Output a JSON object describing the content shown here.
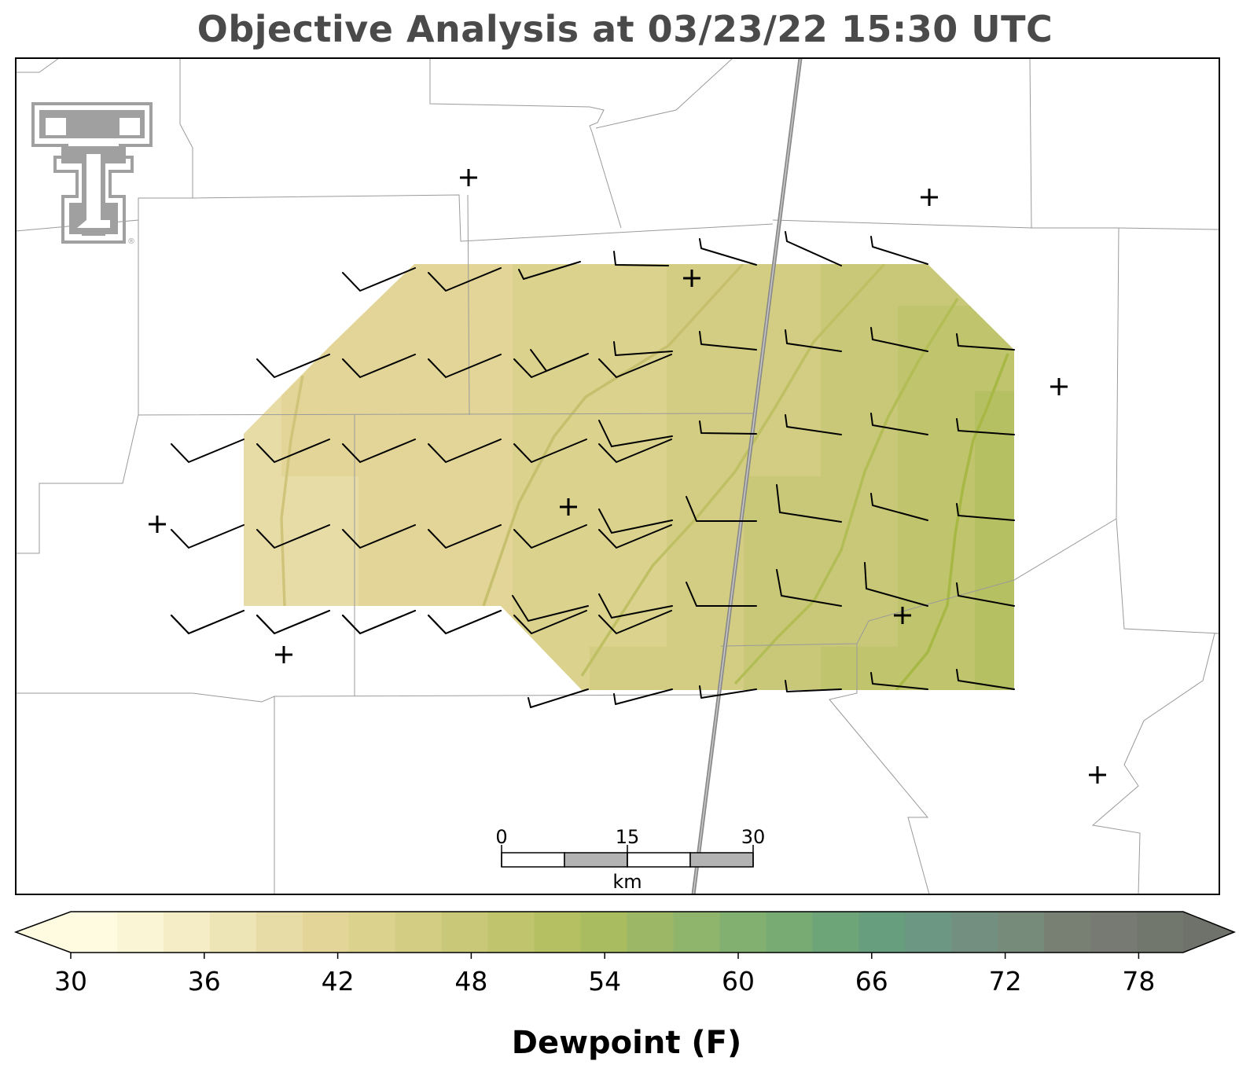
{
  "title": "Objective Analysis at 03/23/22 15:30 UTC",
  "logo": {
    "name": "texas-tech-double-t-logo",
    "color": "#a0a0a0",
    "mark": "®"
  },
  "map": {
    "field": "Dewpoint (F)",
    "grid": {
      "cols": 11,
      "rows": 6,
      "dewpoint": [
        [
          39.5,
          40.0,
          40.5,
          41.5,
          42.5,
          43.5,
          44.5,
          45.5,
          46.5,
          47.5,
          49.0
        ],
        [
          39.5,
          40.0,
          40.5,
          41.5,
          42.5,
          43.5,
          44.5,
          45.5,
          46.5,
          48.0,
          49.5
        ],
        [
          39.5,
          40.0,
          40.5,
          41.0,
          42.0,
          43.5,
          44.5,
          45.5,
          47.0,
          48.5,
          50.0
        ],
        [
          39.0,
          39.5,
          40.0,
          41.0,
          42.0,
          43.5,
          45.0,
          46.0,
          47.0,
          48.5,
          50.5
        ],
        [
          39.0,
          39.5,
          40.0,
          41.0,
          42.0,
          43.5,
          45.0,
          46.0,
          47.5,
          49.0,
          50.5
        ],
        [
          39.0,
          39.5,
          40.0,
          41.0,
          42.5,
          44.0,
          45.5,
          46.5,
          48.0,
          49.5,
          51.0
        ]
      ]
    },
    "stations": 10
  },
  "scalebar": {
    "labels": [
      "0",
      "15",
      "30"
    ],
    "unit": "km"
  },
  "colorbar": {
    "label": "Dewpoint (F)",
    "min": 30,
    "max": 80,
    "step": 2,
    "ticks": [
      "30",
      "36",
      "42",
      "48",
      "54",
      "60",
      "66",
      "72",
      "78"
    ],
    "colors": [
      "#fffbe1",
      "#faf5d4",
      "#f4edc6",
      "#eee5b7",
      "#e8dca6",
      "#e2d597",
      "#dad28d",
      "#d2cd82",
      "#c9c878",
      "#bfc46d",
      "#b4c062",
      "#a9bc5f",
      "#9cb867",
      "#8fb46c",
      "#82b070",
      "#78ab74",
      "#6da578",
      "#679f7e",
      "#6c9782",
      "#728f7f",
      "#768b7a",
      "#787f73",
      "#767a72",
      "#72776d"
    ],
    "under": "#fffbe1",
    "over": "#6f726a"
  }
}
